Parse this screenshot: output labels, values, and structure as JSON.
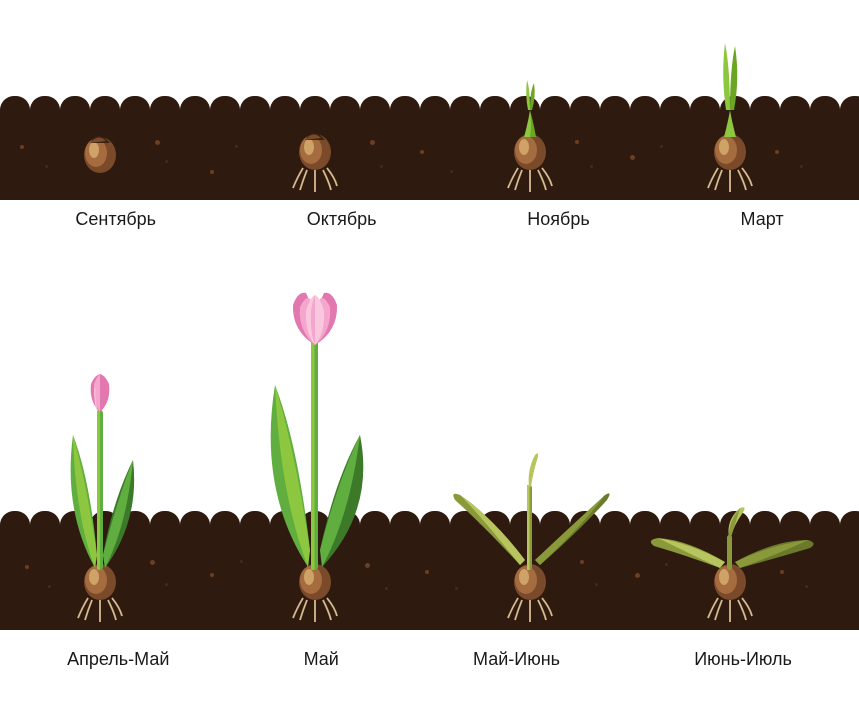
{
  "stages": [
    {
      "label": "Сентябрь"
    },
    {
      "label": "Октябрь"
    },
    {
      "label": "Ноябрь"
    },
    {
      "label": "Март"
    },
    {
      "label": "Апрель-Май"
    },
    {
      "label": "Май"
    },
    {
      "label": "Май-Июнь"
    },
    {
      "label": "Июнь-Июль"
    }
  ],
  "colors": {
    "soil": "#2e1a0f",
    "soil_particle_light": "#6b3f23",
    "soil_particle_dark": "#4a2a18",
    "bulb_brown": "#7a4a2a",
    "bulb_brown_light": "#a56d3f",
    "bulb_brown_highlight": "#cfa268",
    "bulb_tip_dark": "#3a2312",
    "root_color": "#d9c29a",
    "root_shadow": "#a8895f",
    "sprout_green": "#8dc63f",
    "sprout_green_dark": "#6aa523",
    "leaf_green": "#5fae3f",
    "leaf_green_light": "#8dc63f",
    "leaf_green_dark": "#3c7a2a",
    "wilt_green": "#b8c45e",
    "wilt_green_dark": "#8a9a3a",
    "wilt_green_darker": "#6a7a2a",
    "flower_pink": "#f4a6cc",
    "flower_pink_dark": "#e377b0",
    "flower_pink_light": "#fac8de",
    "stem_green": "#5fae3f",
    "stem_green_light": "#8dc63f"
  },
  "layout": {
    "bumps_per_row": 29,
    "stage_x_positions": [
      65,
      280,
      495,
      695
    ],
    "label_font_size": 18
  }
}
